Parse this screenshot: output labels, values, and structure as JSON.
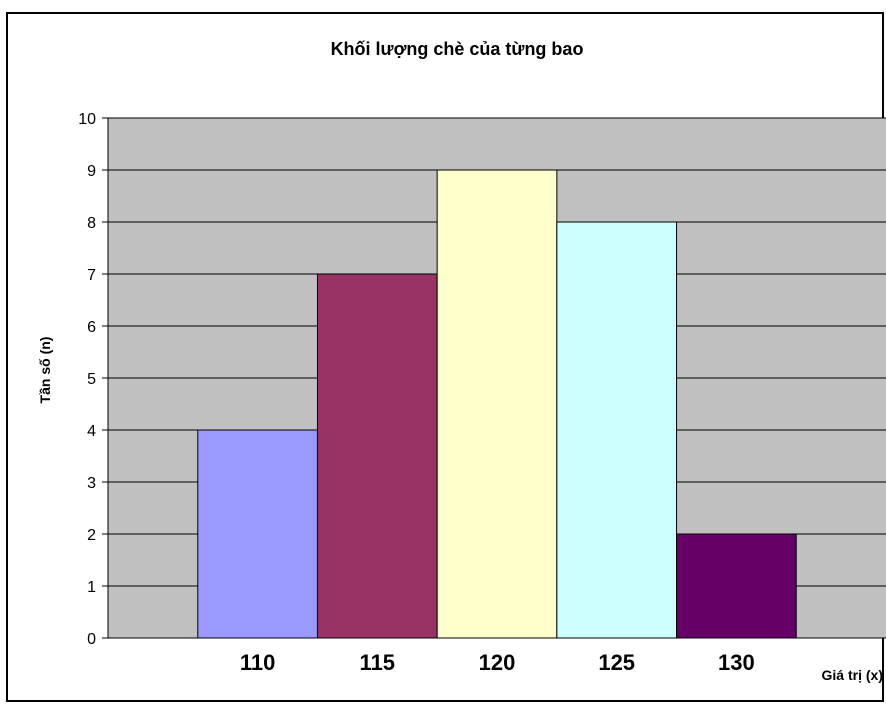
{
  "chart_data": {
    "type": "bar",
    "title": "Khối lượng chè của từng bao",
    "xlabel": "Giá trị (x)",
    "ylabel": "Tần số (n)",
    "categories": [
      "110",
      "115",
      "120",
      "125",
      "130"
    ],
    "values": [
      4,
      7,
      9,
      8,
      2
    ],
    "ylim": [
      0,
      10
    ],
    "yticks": [
      "0",
      "1",
      "2",
      "3",
      "4",
      "5",
      "6",
      "7",
      "8",
      "9",
      "10"
    ],
    "grid": true,
    "colors": [
      "#9999FF",
      "#993366",
      "#FFFFCC",
      "#CCFFFF",
      "#660066"
    ],
    "plot_background": "#C0C0C0"
  }
}
